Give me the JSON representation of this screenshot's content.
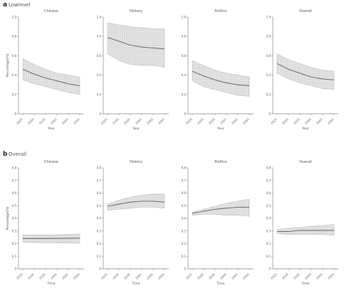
{
  "panel_a": {
    "letter": "a",
    "title": "Lowlevel"
  },
  "panel_b": {
    "letter": "b",
    "title": "Overall"
  },
  "colors": {
    "line": "#666666",
    "band": "#cfcfcf",
    "axis": "#888888",
    "text": "#555555"
  },
  "chart_data": [
    {
      "type": "line",
      "row": "a",
      "title": "Chinese",
      "x": [
        "2025",
        "2030",
        "2035",
        "2040",
        "2045",
        "2050"
      ],
      "series": [
        {
          "values": [
            0.46,
            0.41,
            0.37,
            0.34,
            0.31,
            0.29
          ],
          "upper": [
            0.57,
            0.51,
            0.46,
            0.42,
            0.4,
            0.38
          ],
          "lower": [
            0.35,
            0.31,
            0.28,
            0.25,
            0.22,
            0.2
          ]
        }
      ],
      "ylim": [
        0,
        1
      ],
      "yticks": [
        "0",
        "0.2",
        "0.4",
        "0.6",
        "0.8",
        "1.0"
      ],
      "xlabel": "Year",
      "ylabel": "Percentage(%)"
    },
    {
      "type": "line",
      "row": "a",
      "title": "History",
      "x": [
        "2025",
        "2030",
        "2035",
        "2040",
        "2045",
        "2050"
      ],
      "series": [
        {
          "values": [
            0.79,
            0.75,
            0.71,
            0.69,
            0.68,
            0.67
          ],
          "upper": [
            0.94,
            0.92,
            0.9,
            0.89,
            0.88,
            0.88
          ],
          "lower": [
            0.62,
            0.55,
            0.51,
            0.5,
            0.5,
            0.48
          ]
        }
      ],
      "ylim": [
        0,
        1
      ],
      "yticks": [
        "0",
        "0.2",
        "0.4",
        "0.6",
        "0.8",
        "1.0"
      ],
      "xlabel": "Year",
      "ylabel": ""
    },
    {
      "type": "line",
      "row": "a",
      "title": "Politics",
      "x": [
        "2025",
        "2030",
        "2035",
        "2040",
        "2045",
        "2050"
      ],
      "series": [
        {
          "values": [
            0.44,
            0.39,
            0.35,
            0.32,
            0.3,
            0.29
          ],
          "upper": [
            0.55,
            0.5,
            0.45,
            0.42,
            0.4,
            0.38
          ],
          "lower": [
            0.34,
            0.28,
            0.25,
            0.22,
            0.19,
            0.18
          ]
        }
      ],
      "ylim": [
        0,
        1
      ],
      "yticks": [
        "0",
        "0.2",
        "0.4",
        "0.6",
        "0.8",
        "1.0"
      ],
      "xlabel": "Year",
      "ylabel": ""
    },
    {
      "type": "line",
      "row": "a",
      "title": "Overall",
      "x": [
        "2025",
        "2030",
        "2035",
        "2040",
        "2045",
        "2050"
      ],
      "series": [
        {
          "values": [
            0.52,
            0.46,
            0.42,
            0.38,
            0.36,
            0.35
          ],
          "upper": [
            0.62,
            0.56,
            0.52,
            0.48,
            0.45,
            0.44
          ],
          "lower": [
            0.42,
            0.36,
            0.32,
            0.29,
            0.26,
            0.25
          ]
        }
      ],
      "ylim": [
        0,
        1
      ],
      "yticks": [
        "0",
        "0.2",
        "0.4",
        "0.6",
        "0.8",
        "1.0"
      ],
      "xlabel": "Year",
      "ylabel": ""
    },
    {
      "type": "line",
      "row": "b",
      "title": "Chinese",
      "x": [
        "2025",
        "2030",
        "2035",
        "2040",
        "2045",
        "2050"
      ],
      "series": [
        {
          "values": [
            0.3,
            0.3,
            0.3,
            0.301,
            0.302,
            0.304
          ],
          "upper": [
            0.335,
            0.335,
            0.335,
            0.338,
            0.342,
            0.346
          ],
          "lower": [
            0.265,
            0.26,
            0.258,
            0.256,
            0.254,
            0.252
          ]
        }
      ],
      "ylim": [
        0,
        1
      ],
      "yticks": [
        "0",
        "0.1",
        "0.2",
        "0.3",
        "0.4",
        "0.5",
        "0.6",
        "0.7",
        "0.8"
      ],
      "xlabel": "Time",
      "ylabel": "Percentage(%)"
    },
    {
      "type": "line",
      "row": "b",
      "title": "History",
      "x": [
        "2025",
        "2030",
        "2035",
        "2040",
        "2045",
        "2050"
      ],
      "series": [
        {
          "values": [
            0.62,
            0.64,
            0.66,
            0.67,
            0.67,
            0.66
          ],
          "upper": [
            0.64,
            0.68,
            0.71,
            0.73,
            0.74,
            0.74
          ],
          "lower": [
            0.58,
            0.59,
            0.6,
            0.61,
            0.61,
            0.6
          ]
        }
      ],
      "ylim": [
        0,
        1
      ],
      "yticks": [
        "0",
        "0.1",
        "0.2",
        "0.3",
        "0.4",
        "0.5",
        "0.6",
        "0.7",
        "0.8"
      ],
      "xlabel": "Time",
      "ylabel": ""
    },
    {
      "type": "line",
      "row": "b",
      "title": "Politics",
      "x": [
        "2025",
        "2030",
        "2035",
        "2040",
        "2045",
        "2050"
      ],
      "series": [
        {
          "values": [
            0.55,
            0.57,
            0.59,
            0.6,
            0.61,
            0.61
          ],
          "upper": [
            0.56,
            0.59,
            0.62,
            0.65,
            0.67,
            0.69
          ],
          "lower": [
            0.53,
            0.54,
            0.54,
            0.53,
            0.53,
            0.52
          ]
        }
      ],
      "ylim": [
        0,
        1
      ],
      "yticks": [
        "0",
        "0.1",
        "0.2",
        "0.3",
        "0.4",
        "0.5",
        "0.6",
        "0.7",
        "0.8"
      ],
      "xlabel": "Time",
      "ylabel": ""
    },
    {
      "type": "line",
      "row": "b",
      "title": "Overall",
      "x": [
        "2025",
        "2030",
        "2035",
        "2040",
        "2045",
        "2050"
      ],
      "series": [
        {
          "values": [
            0.37,
            0.37,
            0.38,
            0.38,
            0.38,
            0.38
          ],
          "upper": [
            0.39,
            0.4,
            0.41,
            0.42,
            0.43,
            0.44
          ],
          "lower": [
            0.35,
            0.34,
            0.34,
            0.34,
            0.34,
            0.33
          ]
        }
      ],
      "ylim": [
        0,
        1
      ],
      "yticks": [
        "0",
        "0.1",
        "0.2",
        "0.3",
        "0.4",
        "0.5",
        "0.6",
        "0.7",
        "0.8"
      ],
      "xlabel": "Time",
      "ylabel": ""
    }
  ]
}
